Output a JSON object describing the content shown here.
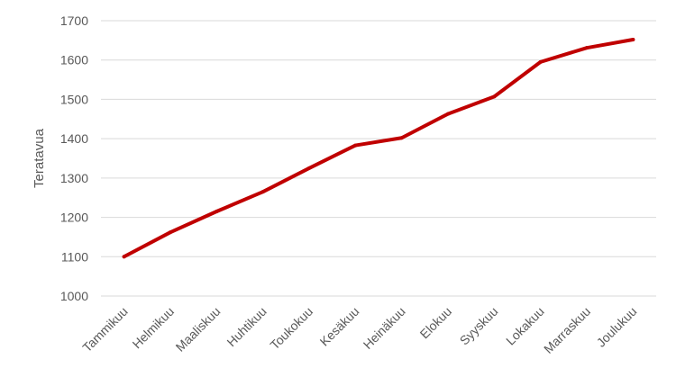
{
  "chart_data": {
    "type": "line",
    "title": "",
    "xlabel": "",
    "ylabel": "Teratavua",
    "categories": [
      "Tammikuu",
      "Helmikuu",
      "Maaliskuu",
      "Huhtikuu",
      "Toukokuu",
      "Kesäkuu",
      "Heinäkuu",
      "Elokuu",
      "Syyskuu",
      "Lokakuu",
      "Marraskuu",
      "Joulukuu"
    ],
    "series": [
      {
        "values": [
          1100,
          1162,
          1215,
          1265,
          1325,
          1383,
          1402,
          1463,
          1507,
          1595,
          1631,
          1652
        ],
        "color": "#c00000"
      }
    ],
    "ylim": [
      1000,
      1700
    ],
    "yticks": [
      1000,
      1100,
      1200,
      1300,
      1400,
      1500,
      1600,
      1700
    ],
    "grid": true,
    "legend": "none"
  }
}
